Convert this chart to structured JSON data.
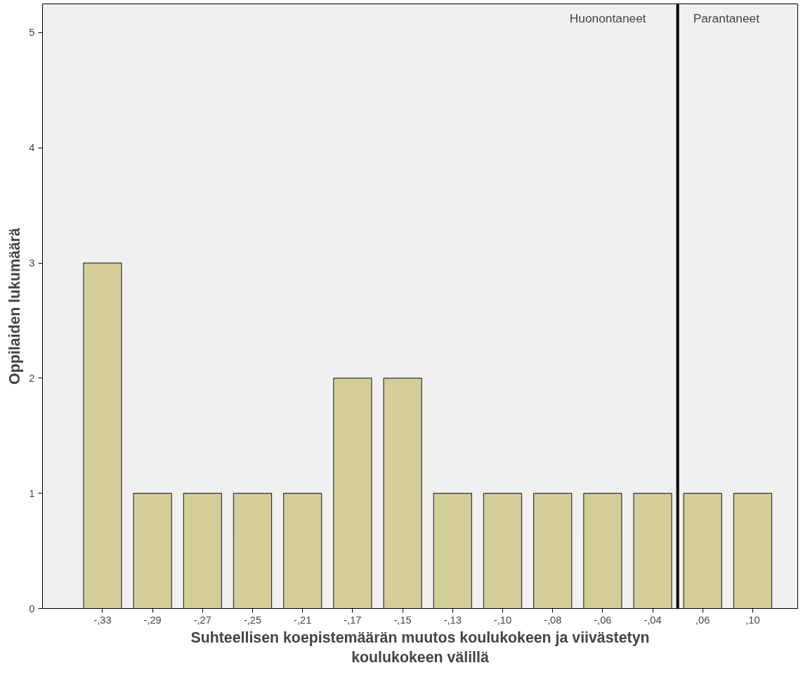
{
  "chart_data": {
    "type": "bar",
    "xlabel": "Suhteellisen koepistemäärän muutos koulukokeen ja viivästetyn koulukokeen välillä",
    "ylabel": "Oppilaiden lukumäärä",
    "categories": [
      "-,33",
      "-,29",
      "-,27",
      "-,25",
      "-,21",
      "-,17",
      "-,15",
      "-,13",
      "-,10",
      "-,08",
      "-,06",
      "-,04",
      ",06",
      ",10"
    ],
    "values": [
      3,
      1,
      1,
      1,
      1,
      2,
      2,
      1,
      1,
      1,
      1,
      1,
      1,
      1
    ],
    "color": "#d3ce98",
    "ylim": [
      0,
      5.25
    ],
    "yticks": [
      0,
      1,
      2,
      3,
      4,
      5
    ],
    "annotations": [
      "Huonontaneet",
      "Parantaneet"
    ],
    "grid": false
  }
}
